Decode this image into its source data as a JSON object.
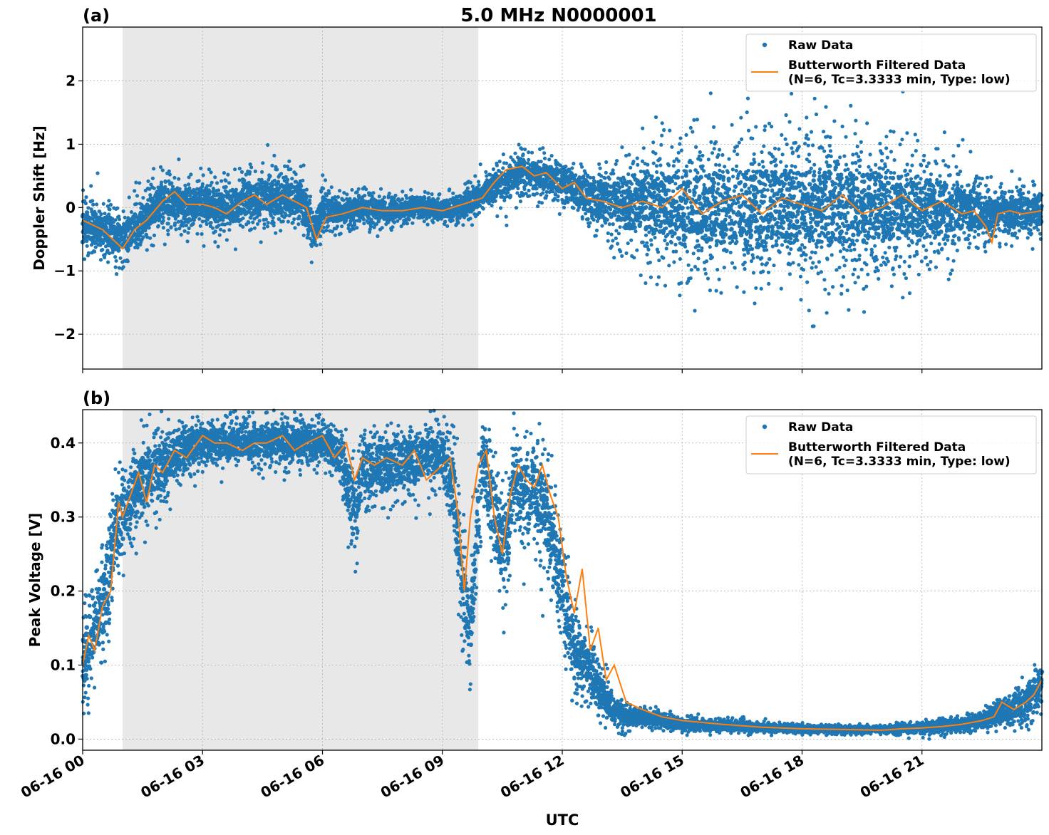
{
  "figure": {
    "title": "5.0 MHz N0000001",
    "xlabel": "UTC"
  },
  "colors": {
    "raw": "#1f77b4",
    "filtered": "#ff7f0e",
    "shade": "#e8e8e8",
    "grid": "#b0b0b0"
  },
  "legend": {
    "raw_label": "Raw Data",
    "filtered_label_line1": "Butterworth Filtered Data",
    "filtered_label_line2": "(N=6, Tc=3.3333 min, Type: low)",
    "placement": "top-right"
  },
  "chart_data": [
    {
      "type": "scatter",
      "panel_label": "(a)",
      "ylabel": "Doppler Shift [Hz]",
      "xlim": [
        "06-16 00:00",
        "06-17 00:00"
      ],
      "ylim": [
        -2.55,
        2.85
      ],
      "yticks": [
        -2,
        -1,
        0,
        1,
        2
      ],
      "ytick_labels": [
        "−2",
        "−1",
        "0",
        "1",
        "2"
      ],
      "xtick_labels": [
        "06-16 00",
        "06-16 03",
        "06-16 06",
        "06-16 09",
        "06-16 12",
        "06-16 15",
        "06-16 18",
        "06-16 21"
      ],
      "grid": true,
      "shaded_region_utc_hours": [
        1.0,
        9.9
      ],
      "series": [
        {
          "name": "Raw Data",
          "kind": "scatter",
          "center_x_hours": [
            0,
            0.5,
            1.0,
            1.5,
            2.0,
            2.5,
            3.0,
            3.5,
            4.0,
            4.5,
            5.0,
            5.5,
            5.8,
            6.0,
            6.5,
            7.0,
            7.5,
            8.0,
            8.5,
            9.0,
            9.5,
            10.0,
            10.5,
            11.0,
            11.5,
            12.0,
            12.5,
            13.0,
            13.5,
            14.0,
            14.5,
            15.0,
            16.0,
            17.0,
            18.0,
            19.0,
            20.0,
            21.0,
            22.0,
            22.5,
            23.0,
            24.0
          ],
          "center_y": [
            -0.3,
            -0.35,
            -0.5,
            -0.2,
            0.1,
            0.05,
            0.05,
            0.0,
            0.1,
            0.2,
            0.15,
            0.1,
            -0.4,
            0.0,
            -0.1,
            0.0,
            -0.05,
            -0.05,
            0.0,
            -0.05,
            0.0,
            0.2,
            0.4,
            0.55,
            0.5,
            0.4,
            0.2,
            0.1,
            0.05,
            0.05,
            0.05,
            0.0,
            0.0,
            0.0,
            0.0,
            0.0,
            0.0,
            0.0,
            0.0,
            -0.1,
            -0.1,
            -0.05
          ],
          "spread_y": [
            0.35,
            0.3,
            0.3,
            0.3,
            0.3,
            0.3,
            0.3,
            0.3,
            0.35,
            0.35,
            0.35,
            0.3,
            0.3,
            0.25,
            0.2,
            0.2,
            0.2,
            0.15,
            0.15,
            0.15,
            0.2,
            0.2,
            0.25,
            0.25,
            0.25,
            0.25,
            0.3,
            0.4,
            0.5,
            0.6,
            0.7,
            0.75,
            0.8,
            0.85,
            0.85,
            0.8,
            0.75,
            0.65,
            0.45,
            0.35,
            0.3,
            0.3
          ]
        },
        {
          "name": "Butterworth Filtered Data (N=6, Tc=3.3333 min, Type: low)",
          "kind": "line",
          "x_hours": [
            0,
            0.5,
            1.0,
            1.3,
            1.6,
            2.0,
            2.3,
            2.6,
            3.0,
            3.3,
            3.6,
            4.0,
            4.3,
            4.6,
            5.0,
            5.3,
            5.6,
            5.85,
            6.1,
            6.5,
            7.0,
            7.5,
            8.0,
            8.5,
            9.0,
            9.5,
            10.0,
            10.3,
            10.6,
            11.0,
            11.3,
            11.6,
            12.0,
            12.3,
            12.6,
            13.0,
            13.5,
            14.0,
            14.5,
            15.0,
            15.5,
            16.0,
            16.5,
            17.0,
            17.5,
            18.0,
            18.5,
            19.0,
            19.5,
            20.0,
            20.5,
            21.0,
            21.5,
            22.0,
            22.3,
            22.6,
            22.75,
            22.9,
            23.2,
            23.5,
            24.0
          ],
          "y": [
            -0.2,
            -0.35,
            -0.65,
            -0.35,
            -0.2,
            0.1,
            0.25,
            0.05,
            0.05,
            0.0,
            -0.1,
            0.1,
            0.2,
            0.05,
            0.2,
            0.1,
            0.0,
            -0.5,
            -0.15,
            -0.1,
            0.0,
            -0.05,
            -0.05,
            0.0,
            -0.05,
            0.05,
            0.15,
            0.4,
            0.6,
            0.65,
            0.5,
            0.55,
            0.3,
            0.4,
            0.15,
            0.1,
            0.0,
            0.1,
            0.0,
            0.3,
            -0.1,
            0.1,
            0.2,
            -0.1,
            0.15,
            0.05,
            -0.05,
            0.2,
            -0.1,
            0.0,
            0.2,
            -0.05,
            0.1,
            -0.1,
            -0.05,
            -0.3,
            -0.55,
            -0.1,
            -0.05,
            -0.1,
            -0.05
          ]
        }
      ]
    },
    {
      "type": "scatter",
      "panel_label": "(b)",
      "ylabel": "Peak Voltage [V]",
      "xlim": [
        "06-16 00:00",
        "06-17 00:00"
      ],
      "ylim": [
        -0.015,
        0.445
      ],
      "yticks": [
        0.0,
        0.1,
        0.2,
        0.3,
        0.4
      ],
      "ytick_labels": [
        "0.0",
        "0.1",
        "0.2",
        "0.3",
        "0.4"
      ],
      "xtick_labels": [
        "06-16 00",
        "06-16 03",
        "06-16 06",
        "06-16 09",
        "06-16 12",
        "06-16 15",
        "06-16 18",
        "06-16 21"
      ],
      "grid": true,
      "shaded_region_utc_hours": [
        1.0,
        9.9
      ],
      "series": [
        {
          "name": "Raw Data",
          "kind": "scatter",
          "center_x_hours": [
            0,
            0.3,
            0.6,
            0.8,
            1.0,
            1.3,
            1.6,
            2.0,
            2.5,
            3.0,
            3.5,
            4.0,
            4.5,
            5.0,
            5.5,
            6.0,
            6.5,
            6.8,
            7.0,
            7.5,
            8.0,
            8.5,
            9.0,
            9.3,
            9.5,
            9.7,
            10.0,
            10.3,
            10.6,
            10.8,
            11.0,
            11.3,
            11.6,
            12.0,
            12.3,
            12.6,
            13.0,
            13.3,
            13.6,
            14.0,
            14.5,
            15.0,
            16.0,
            17.0,
            18.0,
            19.0,
            20.0,
            21.0,
            22.0,
            22.5,
            23.0,
            23.5,
            24.0
          ],
          "center_y": [
            0.1,
            0.15,
            0.2,
            0.28,
            0.3,
            0.33,
            0.36,
            0.37,
            0.39,
            0.4,
            0.4,
            0.4,
            0.4,
            0.4,
            0.4,
            0.4,
            0.38,
            0.3,
            0.37,
            0.37,
            0.37,
            0.38,
            0.38,
            0.33,
            0.2,
            0.15,
            0.38,
            0.3,
            0.25,
            0.36,
            0.33,
            0.34,
            0.3,
            0.2,
            0.12,
            0.1,
            0.06,
            0.04,
            0.03,
            0.03,
            0.025,
            0.02,
            0.018,
            0.016,
            0.014,
            0.013,
            0.013,
            0.015,
            0.02,
            0.025,
            0.035,
            0.045,
            0.07
          ],
          "spread_y": [
            0.05,
            0.05,
            0.06,
            0.05,
            0.05,
            0.05,
            0.04,
            0.04,
            0.03,
            0.025,
            0.025,
            0.025,
            0.025,
            0.025,
            0.025,
            0.025,
            0.03,
            0.05,
            0.04,
            0.04,
            0.04,
            0.035,
            0.035,
            0.05,
            0.06,
            0.05,
            0.04,
            0.06,
            0.07,
            0.05,
            0.05,
            0.05,
            0.06,
            0.05,
            0.04,
            0.035,
            0.025,
            0.015,
            0.012,
            0.01,
            0.008,
            0.007,
            0.006,
            0.005,
            0.004,
            0.004,
            0.004,
            0.006,
            0.008,
            0.01,
            0.015,
            0.02,
            0.03
          ]
        },
        {
          "name": "Butterworth Filtered Data (N=6, Tc=3.3333 min, Type: low)",
          "kind": "line",
          "x_hours": [
            0,
            0.15,
            0.3,
            0.5,
            0.7,
            0.8,
            0.9,
            1.0,
            1.2,
            1.4,
            1.6,
            1.8,
            2.0,
            2.3,
            2.6,
            3.0,
            3.3,
            3.6,
            4.0,
            4.3,
            4.6,
            5.0,
            5.3,
            5.6,
            6.0,
            6.3,
            6.6,
            6.8,
            7.0,
            7.3,
            7.6,
            8.0,
            8.3,
            8.6,
            9.0,
            9.2,
            9.4,
            9.55,
            9.7,
            9.9,
            10.1,
            10.3,
            10.5,
            10.7,
            10.9,
            11.1,
            11.3,
            11.5,
            11.7,
            11.9,
            12.1,
            12.3,
            12.5,
            12.7,
            12.9,
            13.1,
            13.3,
            13.6,
            14.0,
            14.5,
            15.0,
            16.0,
            17.0,
            18.0,
            19.0,
            20.0,
            20.5,
            21.0,
            21.5,
            22.0,
            22.5,
            22.8,
            23.0,
            23.3,
            23.6,
            23.8,
            24.0
          ],
          "y": [
            0.1,
            0.14,
            0.12,
            0.18,
            0.2,
            0.26,
            0.32,
            0.3,
            0.33,
            0.36,
            0.32,
            0.37,
            0.36,
            0.39,
            0.38,
            0.41,
            0.4,
            0.4,
            0.39,
            0.4,
            0.4,
            0.41,
            0.39,
            0.4,
            0.41,
            0.38,
            0.4,
            0.35,
            0.38,
            0.37,
            0.38,
            0.37,
            0.39,
            0.35,
            0.37,
            0.38,
            0.3,
            0.2,
            0.3,
            0.37,
            0.39,
            0.3,
            0.25,
            0.33,
            0.37,
            0.35,
            0.34,
            0.37,
            0.33,
            0.3,
            0.22,
            0.17,
            0.23,
            0.12,
            0.15,
            0.08,
            0.1,
            0.05,
            0.04,
            0.03,
            0.025,
            0.02,
            0.016,
            0.014,
            0.013,
            0.012,
            0.014,
            0.015,
            0.017,
            0.02,
            0.025,
            0.03,
            0.05,
            0.04,
            0.05,
            0.06,
            0.08
          ]
        }
      ]
    }
  ]
}
